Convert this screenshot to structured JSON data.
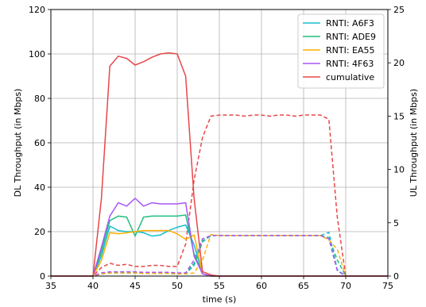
{
  "chart_data": {
    "type": "line",
    "xlabel": "time (s)",
    "ylabel_left": "DL Throughput (in Mbps)",
    "ylabel_right": "UL Throughput (in Mbps)",
    "xlim": [
      35,
      75
    ],
    "ylim_left": [
      0,
      120
    ],
    "ylim_right": [
      0,
      25
    ],
    "xticks": [
      "35",
      "40",
      "45",
      "50",
      "55",
      "60",
      "65",
      "70",
      "75"
    ],
    "yticks_left": [
      "0",
      "20",
      "40",
      "60",
      "80",
      "100",
      "120"
    ],
    "yticks_right": [
      "0",
      "5",
      "10",
      "15",
      "20",
      "25"
    ],
    "grid": true,
    "legend_position": "top-right",
    "series": [
      {
        "name": "RNTI: A6F3",
        "color": "#17becf",
        "axis": "left",
        "style": "solid",
        "x": [
          35,
          36,
          37,
          38,
          39,
          40,
          41,
          42,
          43,
          44,
          45,
          46,
          47,
          48,
          49,
          50,
          51,
          52,
          53,
          54,
          55,
          56,
          57,
          58,
          59,
          60,
          61,
          62,
          63,
          64,
          65,
          66,
          67,
          68,
          69,
          70,
          71,
          72,
          73,
          74,
          75
        ],
        "y": [
          0,
          0,
          0,
          0,
          0,
          0,
          9,
          22.5,
          20.5,
          20,
          20,
          19.5,
          18,
          18.5,
          20.5,
          22,
          23,
          14,
          1,
          0,
          0,
          0,
          0,
          0,
          0,
          0,
          0,
          0,
          0,
          0,
          0,
          0,
          0,
          0,
          0,
          0,
          0,
          0,
          0,
          0,
          0
        ]
      },
      {
        "name": "RNTI: ADE9",
        "color": "#1fbf7f",
        "axis": "left",
        "style": "solid",
        "x": [
          35,
          36,
          37,
          38,
          39,
          40,
          41,
          42,
          43,
          44,
          45,
          46,
          47,
          48,
          49,
          50,
          51,
          52,
          53,
          54,
          55,
          56,
          57,
          58,
          59,
          60,
          61,
          62,
          63,
          64,
          65,
          66,
          67,
          68,
          69,
          70,
          71,
          72,
          73,
          74,
          75
        ],
        "y": [
          0,
          0,
          0,
          0,
          0,
          0,
          11,
          25,
          27,
          26.5,
          18,
          26.5,
          27,
          27,
          27,
          27,
          27.5,
          10,
          1,
          0,
          0,
          0,
          0,
          0,
          0,
          0,
          0,
          0,
          0,
          0,
          0,
          0,
          0,
          0,
          0,
          0,
          0,
          0,
          0,
          0,
          0
        ]
      },
      {
        "name": "RNTI: EA55",
        "color": "#ffb000",
        "axis": "left",
        "style": "solid",
        "x": [
          35,
          36,
          37,
          38,
          39,
          40,
          41,
          42,
          43,
          44,
          45,
          46,
          47,
          48,
          49,
          50,
          51,
          52,
          53,
          54,
          55,
          56,
          57,
          58,
          59,
          60,
          61,
          62,
          63,
          64,
          65,
          66,
          67,
          68,
          69,
          70,
          71,
          72,
          73,
          74,
          75
        ],
        "y": [
          0,
          0,
          0,
          0,
          0,
          0,
          7,
          19.5,
          19,
          19.5,
          20,
          20.5,
          20.5,
          20.5,
          20.5,
          19,
          16.5,
          18.5,
          1,
          0,
          0,
          0,
          0,
          0,
          0,
          0,
          0,
          0,
          0,
          0,
          0,
          0,
          0,
          0,
          0,
          0,
          0,
          0,
          0,
          0,
          0
        ]
      },
      {
        "name": "RNTI: 4F63",
        "color": "#a855f7",
        "axis": "left",
        "style": "solid",
        "x": [
          35,
          36,
          37,
          38,
          39,
          40,
          41,
          42,
          43,
          44,
          45,
          46,
          47,
          48,
          49,
          50,
          51,
          52,
          53,
          54,
          55,
          56,
          57,
          58,
          59,
          60,
          61,
          62,
          63,
          64,
          65,
          66,
          67,
          68,
          69,
          70,
          71,
          72,
          73,
          74,
          75
        ],
        "y": [
          0,
          0,
          0,
          0,
          0,
          0,
          13,
          27,
          33,
          31.5,
          35,
          31.5,
          33,
          32.5,
          32.5,
          32.5,
          33,
          9,
          1,
          0,
          0,
          0,
          0,
          0,
          0,
          0,
          0,
          0,
          0,
          0,
          0,
          0,
          0,
          0,
          0,
          0,
          0,
          0,
          0,
          0,
          0
        ]
      },
      {
        "name": "cumulative",
        "color": "#e8474a",
        "axis": "left",
        "style": "solid",
        "x": [
          35,
          36,
          37,
          38,
          39,
          40,
          41,
          42,
          43,
          44,
          45,
          46,
          47,
          48,
          49,
          50,
          51,
          52,
          53,
          54,
          55,
          56,
          57,
          58,
          59,
          60,
          61,
          62,
          63,
          64,
          65,
          66,
          67,
          68,
          69,
          70,
          71,
          72,
          73,
          74,
          75
        ],
        "y": [
          0,
          0,
          0,
          0,
          0,
          0,
          35,
          94.5,
          99,
          98,
          95,
          96.5,
          98.5,
          100,
          100.5,
          100,
          90,
          35,
          2,
          0.5,
          0,
          0,
          0,
          0,
          0,
          0,
          0,
          0,
          0,
          0,
          0,
          0,
          0,
          0,
          0,
          0,
          0,
          0,
          0,
          0,
          0
        ]
      },
      {
        "name": "",
        "color": "#17becf",
        "axis": "right",
        "style": "dashed",
        "x": [
          35,
          36,
          37,
          38,
          39,
          40,
          41,
          42,
          43,
          44,
          45,
          46,
          47,
          48,
          49,
          50,
          51,
          52,
          53,
          54,
          55,
          56,
          57,
          58,
          59,
          60,
          61,
          62,
          63,
          64,
          65,
          66,
          67,
          68,
          69,
          70,
          71,
          72,
          73,
          74,
          75
        ],
        "y": [
          0,
          0,
          0,
          0,
          0,
          0,
          0.2,
          0.3,
          0.3,
          0.3,
          0.3,
          0.25,
          0.25,
          0.25,
          0.25,
          0.2,
          0.2,
          1.0,
          3.2,
          3.8,
          3.8,
          3.8,
          3.8,
          3.8,
          3.8,
          3.8,
          3.8,
          3.8,
          3.8,
          3.8,
          3.8,
          3.8,
          3.8,
          4.1,
          0.6,
          0,
          0,
          0,
          0,
          0,
          0
        ]
      },
      {
        "name": "",
        "color": "#1fbf7f",
        "axis": "right",
        "style": "dashed",
        "x": [
          35,
          36,
          37,
          38,
          39,
          40,
          41,
          42,
          43,
          44,
          45,
          46,
          47,
          48,
          49,
          50,
          51,
          52,
          53,
          54,
          55,
          56,
          57,
          58,
          59,
          60,
          61,
          62,
          63,
          64,
          65,
          66,
          67,
          68,
          69,
          70,
          71,
          72,
          73,
          74,
          75
        ],
        "y": [
          0,
          0,
          0,
          0,
          0,
          0,
          0.2,
          0.3,
          0.3,
          0.3,
          0.3,
          0.25,
          0.25,
          0.25,
          0.25,
          0.2,
          0.2,
          1.2,
          3.3,
          3.8,
          3.8,
          3.8,
          3.8,
          3.8,
          3.8,
          3.8,
          3.8,
          3.8,
          3.8,
          3.8,
          3.8,
          3.8,
          3.8,
          3.6,
          1.5,
          0,
          0,
          0,
          0,
          0,
          0
        ]
      },
      {
        "name": "",
        "color": "#ffb000",
        "axis": "right",
        "style": "dashed",
        "x": [
          35,
          36,
          37,
          38,
          39,
          40,
          41,
          42,
          43,
          44,
          45,
          46,
          47,
          48,
          49,
          50,
          51,
          52,
          53,
          54,
          55,
          56,
          57,
          58,
          59,
          60,
          61,
          62,
          63,
          64,
          65,
          66,
          67,
          68,
          69,
          70,
          71,
          72,
          73,
          74,
          75
        ],
        "y": [
          0,
          0,
          0,
          0,
          0,
          0,
          0.2,
          0.3,
          0.3,
          0.3,
          0.3,
          0.25,
          0.25,
          0.25,
          0.25,
          0.2,
          0.2,
          0.3,
          1.5,
          3.9,
          3.8,
          3.8,
          3.8,
          3.8,
          3.8,
          3.8,
          3.8,
          3.8,
          3.8,
          3.8,
          3.8,
          3.8,
          3.8,
          3.4,
          2.5,
          0,
          0,
          0,
          0,
          0,
          0
        ]
      },
      {
        "name": "",
        "color": "#a855f7",
        "axis": "right",
        "style": "dashed",
        "x": [
          35,
          36,
          37,
          38,
          39,
          40,
          41,
          42,
          43,
          44,
          45,
          46,
          47,
          48,
          49,
          50,
          51,
          52,
          53,
          54,
          55,
          56,
          57,
          58,
          59,
          60,
          61,
          62,
          63,
          64,
          65,
          66,
          67,
          68,
          69,
          70,
          71,
          72,
          73,
          74,
          75
        ],
        "y": [
          0,
          0,
          0,
          0,
          0,
          0,
          0.3,
          0.4,
          0.4,
          0.4,
          0.4,
          0.35,
          0.35,
          0.35,
          0.35,
          0.3,
          0.3,
          1.5,
          3.5,
          3.8,
          3.8,
          3.8,
          3.8,
          3.8,
          3.8,
          3.8,
          3.8,
          3.8,
          3.8,
          3.8,
          3.8,
          3.8,
          3.8,
          3.5,
          0.5,
          0,
          0,
          0,
          0,
          0,
          0
        ]
      },
      {
        "name": "",
        "color": "#e8474a",
        "axis": "right",
        "style": "dashed",
        "x": [
          35,
          36,
          37,
          38,
          39,
          40,
          41,
          42,
          43,
          44,
          45,
          46,
          47,
          48,
          49,
          50,
          51,
          52,
          53,
          54,
          55,
          56,
          57,
          58,
          59,
          60,
          61,
          62,
          63,
          64,
          65,
          66,
          67,
          68,
          69,
          70,
          71,
          72,
          73,
          74,
          75
        ],
        "y": [
          0,
          0,
          0,
          0,
          0,
          0,
          0.8,
          1.2,
          1.0,
          1.1,
          0.9,
          0.9,
          1.0,
          1.0,
          0.9,
          0.9,
          3.0,
          9.0,
          13.0,
          15.0,
          15.1,
          15.1,
          15.1,
          15.0,
          15.1,
          15.1,
          15.0,
          15.1,
          15.1,
          15.0,
          15.1,
          15.1,
          15.1,
          14.7,
          5.5,
          0,
          0,
          0,
          0,
          0,
          0
        ]
      }
    ]
  }
}
